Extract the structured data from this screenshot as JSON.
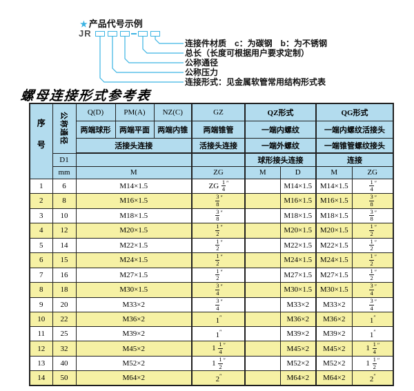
{
  "diagram": {
    "star": "★",
    "title": "产品代号示例",
    "code_prefix": "JR",
    "labels": [
      "连接件材质　c：为碳钢　b：为不锈钢",
      "总长（长度可根据用户要求定制）",
      "公称通径",
      "公称压力",
      "连接形式：见金属软管常用结构形式表"
    ]
  },
  "table": {
    "title": "螺母连接形式参考表",
    "header": {
      "seq": "序号",
      "dn": "公称通径",
      "d1": "D1",
      "mm": "mm",
      "col_qd": "Q(D)",
      "col_pm": "PM(A)",
      "col_nz": "NZ(C)",
      "col_gz": "GZ",
      "col_qz": "QZ形式",
      "col_qg": "QG形式",
      "qd_desc": "两端球形",
      "pm_desc": "两端平面",
      "nz_desc": "两端内锥",
      "gz_desc": "两端锥管",
      "qz_desc1": "一端内螺纹",
      "qg_desc1": "一端内螺纹活接头",
      "union_conn": "活接头连接",
      "gz_conn": "活接头连接",
      "qz_desc2": "一端外螺纹",
      "qg_desc2": "一端锥管螺纹接头",
      "qz_conn": "球形接头连接",
      "qg_conn": "连接",
      "m1": "M",
      "zg1": "ZG",
      "m2": "M",
      "d": "D",
      "m3": "M",
      "zg2": "ZG"
    },
    "rows": [
      [
        "1",
        "6",
        "M14×1.5",
        "ZG 1/4″",
        "",
        "M14×1.5",
        "M14×1.5",
        "1/4″"
      ],
      [
        "2",
        "8",
        "M16×1.5",
        "3/8″",
        "",
        "M16×1.5",
        "M16×1.5",
        "3/8″"
      ],
      [
        "3",
        "10",
        "M18×1.5",
        "3/8″",
        "",
        "M18×1.5",
        "M18×1.5",
        "3/8″"
      ],
      [
        "4",
        "12",
        "M20×1.5",
        "1/2″",
        "",
        "M20×1.5",
        "M20×1.5",
        "1/2″"
      ],
      [
        "5",
        "14",
        "M22×1.5",
        "1/2″",
        "",
        "M22×1.5",
        "M22×1.5",
        "1/2″"
      ],
      [
        "6",
        "15",
        "M24×1.5",
        "1/2″",
        "",
        "M24×1.5",
        "M24×1.5",
        "1/2″"
      ],
      [
        "7",
        "16",
        "M27×1.5",
        "1/2″",
        "",
        "M27×1.5",
        "M27×1.5",
        "1/2″"
      ],
      [
        "8",
        "18",
        "M30×1.5",
        "3/4″",
        "",
        "M30×1.5",
        "M30×1.5",
        "3/4″"
      ],
      [
        "9",
        "20",
        "M33×2",
        "3/4″",
        "",
        "M33×2",
        "M33×2",
        "3/4″"
      ],
      [
        "10",
        "22",
        "M36×2",
        "1″",
        "",
        "M36×2",
        "M36×2",
        "1″"
      ],
      [
        "11",
        "25",
        "M39×2",
        "1″",
        "",
        "M39×2",
        "M39×2",
        "1″"
      ],
      [
        "12",
        "32",
        "M45×2",
        "1 1/4″",
        "",
        "M45×2",
        "M45×2",
        "1 1/4″"
      ],
      [
        "13",
        "40",
        "M52×2",
        "1 1/2″",
        "",
        "M52×2",
        "M52×2",
        "1 1/2″"
      ],
      [
        "14",
        "50",
        "M64×2",
        "2″",
        "",
        "M64×2",
        "M64×2",
        "2″"
      ]
    ]
  },
  "colors": {
    "accent_cyan": "#3ab3e3",
    "header_blue": "#b3dcee",
    "row_yellow": "#f6f1a4",
    "border": "#1f1f1f"
  }
}
